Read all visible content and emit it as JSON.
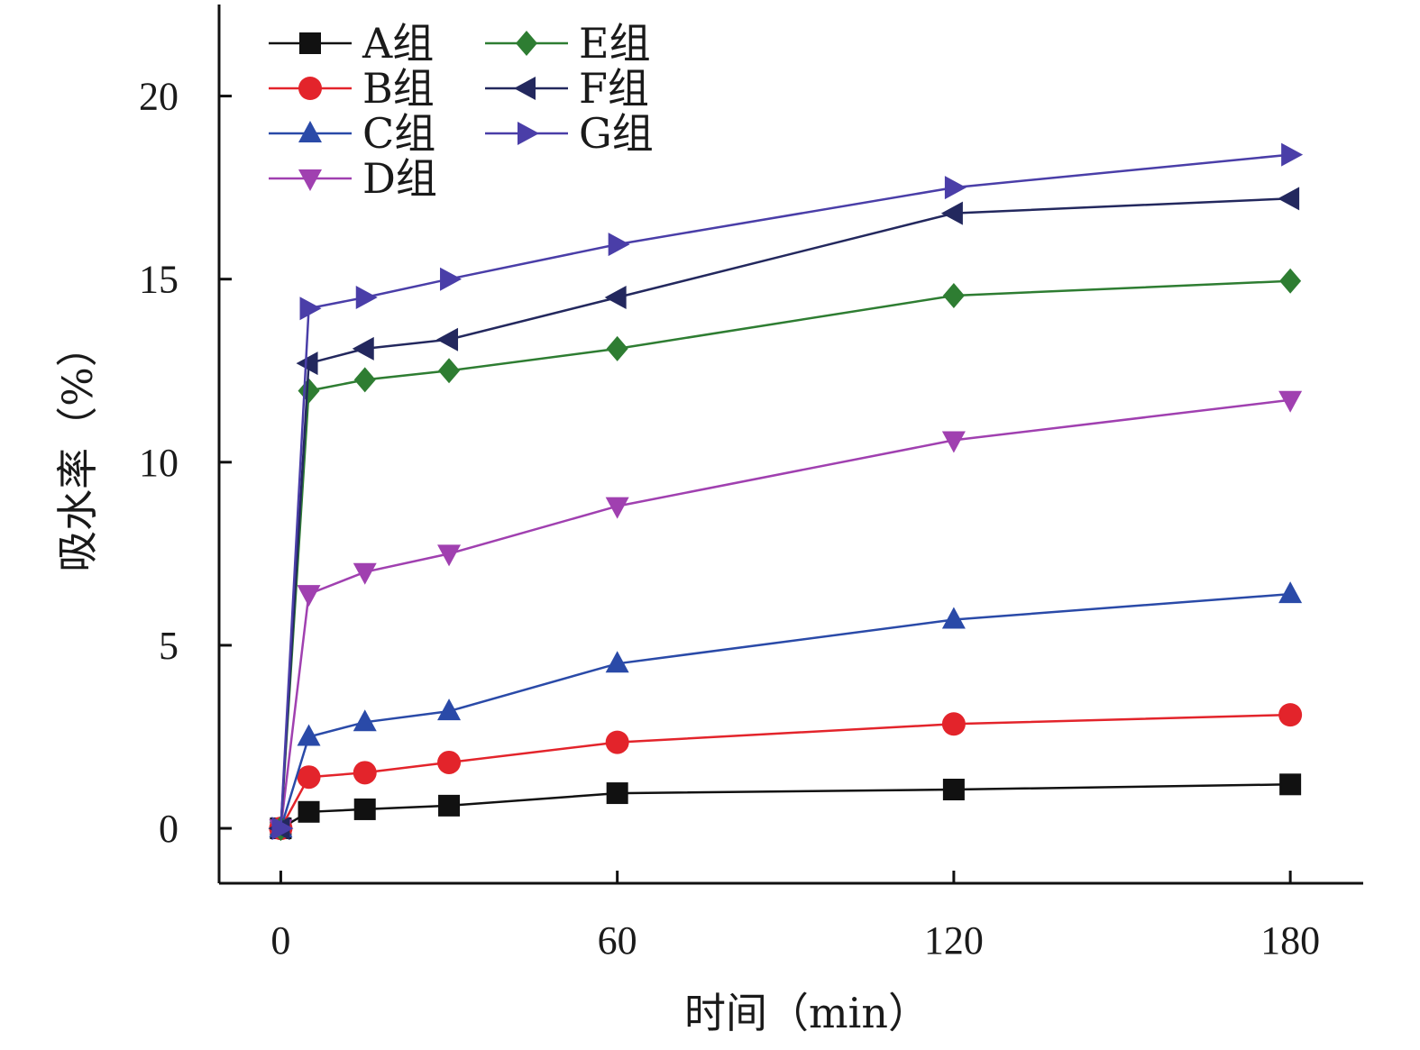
{
  "chart_data": {
    "type": "line",
    "xlabel": "时间（min）",
    "ylabel": "吸水率（%）",
    "xlim": [
      -11,
      193
    ],
    "ylim": [
      -1.5,
      22.5
    ],
    "xticks": [
      0,
      60,
      120,
      180
    ],
    "yticks": [
      0,
      5,
      10,
      15,
      20
    ],
    "grid": false,
    "legend_position": "top-left",
    "series": [
      {
        "name": "A组",
        "color": "#111111",
        "marker": "square",
        "x": [
          0,
          5,
          15,
          30,
          60,
          120,
          180
        ],
        "y": [
          0,
          0.45,
          0.52,
          0.62,
          0.96,
          1.06,
          1.2
        ]
      },
      {
        "name": "B组",
        "color": "#e3242b",
        "marker": "circle",
        "x": [
          0,
          5,
          15,
          30,
          60,
          120,
          180
        ],
        "y": [
          0,
          1.4,
          1.52,
          1.8,
          2.35,
          2.85,
          3.1
        ]
      },
      {
        "name": "C组",
        "color": "#2a4aa8",
        "marker": "triangle-up",
        "x": [
          0,
          5,
          15,
          30,
          60,
          120,
          180
        ],
        "y": [
          0,
          2.5,
          2.9,
          3.2,
          4.5,
          5.7,
          6.4
        ]
      },
      {
        "name": "D组",
        "color": "#a040b0",
        "marker": "triangle-down",
        "x": [
          0,
          5,
          15,
          30,
          60,
          120,
          180
        ],
        "y": [
          0,
          6.4,
          7.0,
          7.5,
          8.8,
          10.6,
          11.7
        ]
      },
      {
        "name": "E组",
        "color": "#2e7d32",
        "marker": "diamond",
        "x": [
          0,
          5,
          15,
          30,
          60,
          120,
          180
        ],
        "y": [
          0,
          11.95,
          12.25,
          12.5,
          13.1,
          14.55,
          14.95
        ]
      },
      {
        "name": "F组",
        "color": "#23285e",
        "marker": "triangle-left",
        "x": [
          0,
          5,
          15,
          30,
          60,
          120,
          180
        ],
        "y": [
          0,
          12.7,
          13.1,
          13.35,
          14.5,
          16.8,
          17.2
        ]
      },
      {
        "name": "G组",
        "color": "#4a3ea8",
        "marker": "triangle-right",
        "x": [
          0,
          5,
          15,
          30,
          60,
          120,
          180
        ],
        "y": [
          0,
          14.2,
          14.5,
          15.0,
          15.95,
          17.5,
          18.4
        ]
      }
    ]
  }
}
